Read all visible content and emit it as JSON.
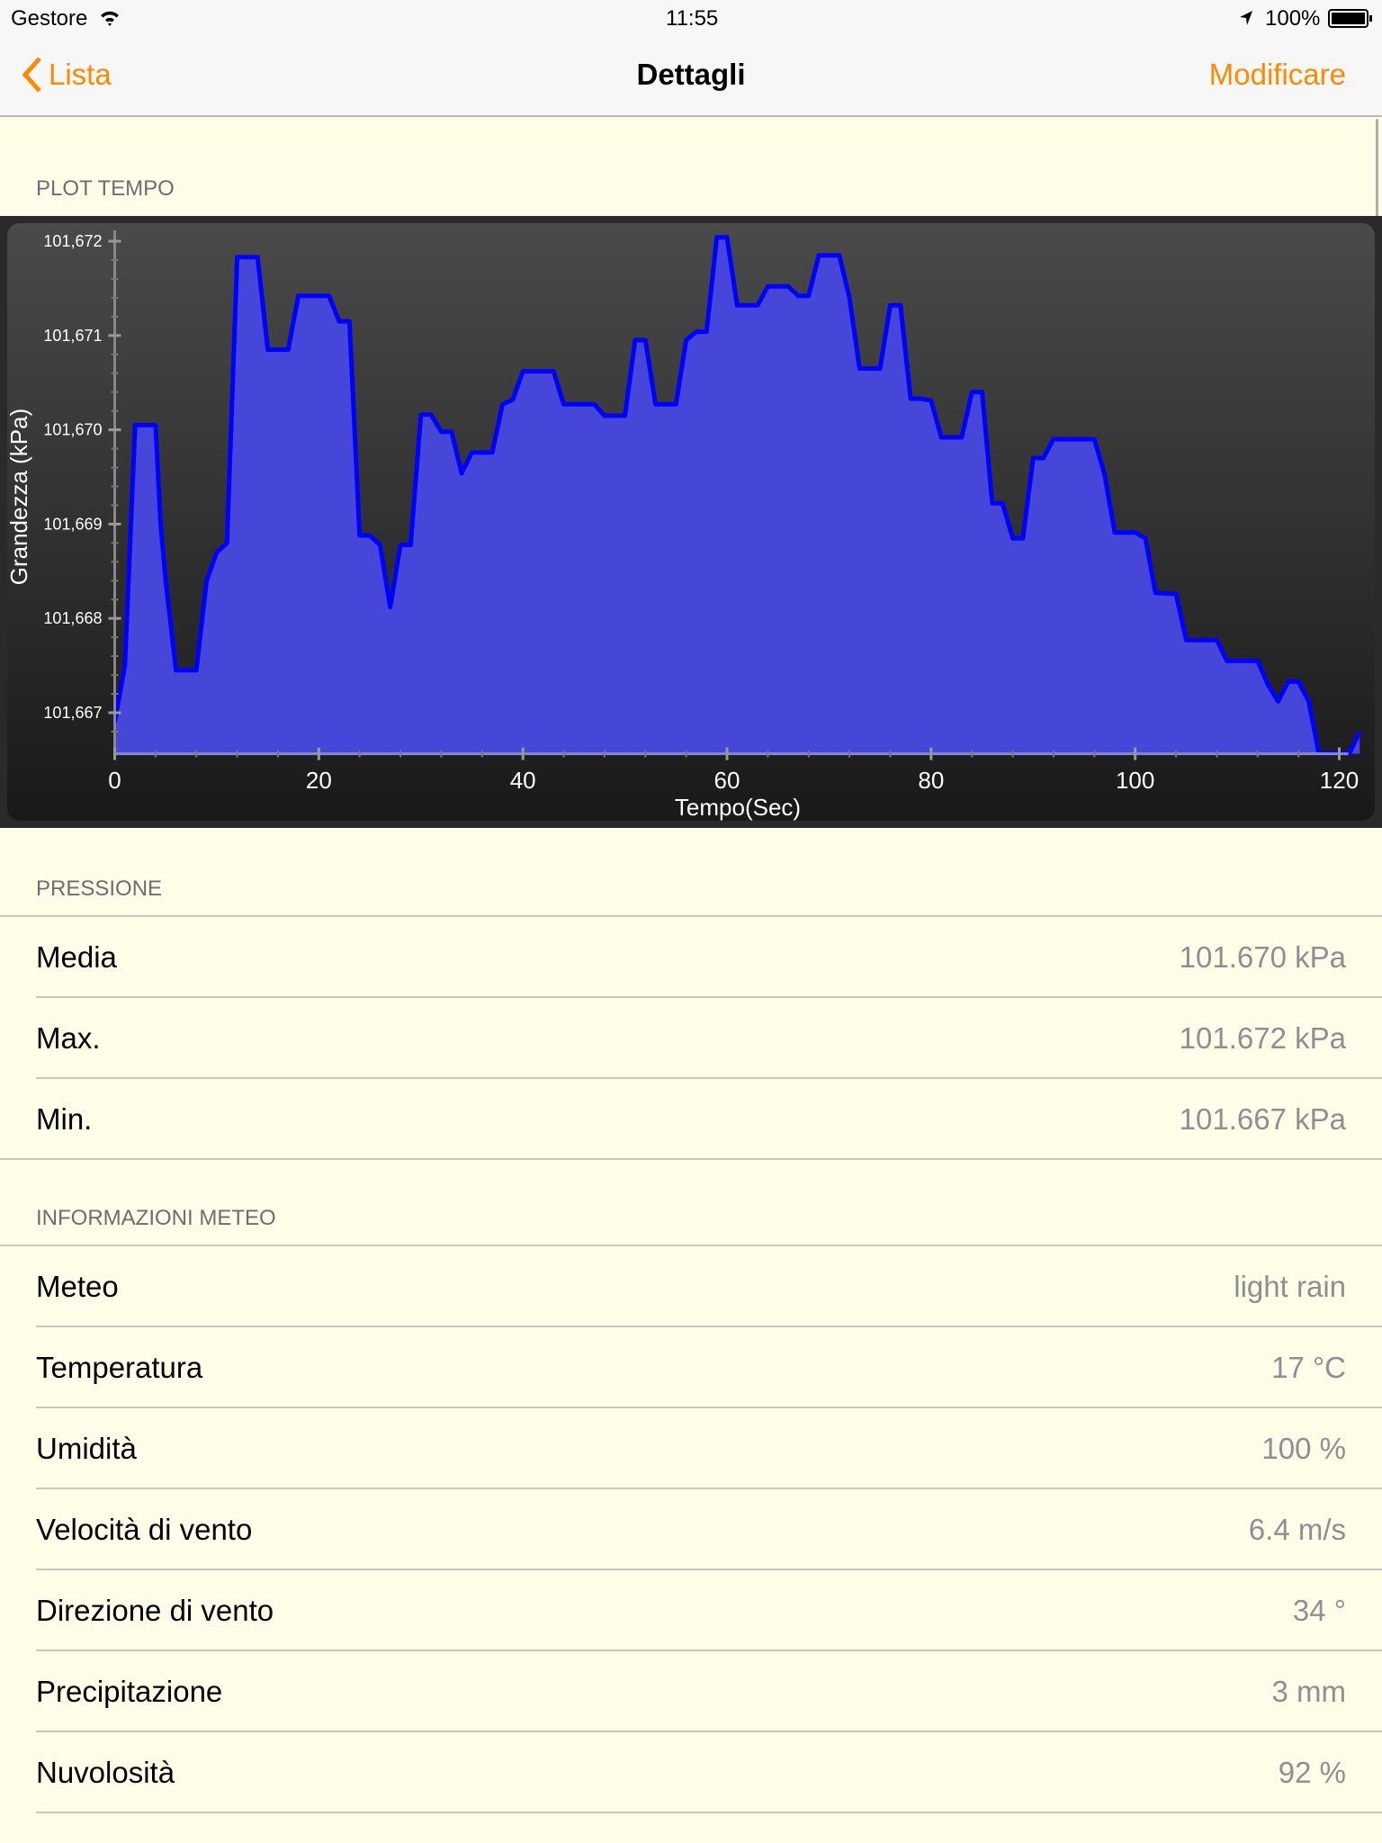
{
  "status_bar": {
    "carrier": "Gestore",
    "time": "11:55",
    "battery": "100%",
    "icons": [
      "wifi-icon",
      "location-arrow-icon",
      "battery-icon"
    ]
  },
  "nav": {
    "back_label": "Lista",
    "title": "Dettagli",
    "edit_label": "Modificare",
    "accent_color": "#ff8a00"
  },
  "plot_section": {
    "header": "PLOT TEMPO"
  },
  "chart_data": {
    "type": "area",
    "xlabel": "Tempo(Sec)",
    "ylabel": "Grandezza (kPa)",
    "xlim": [
      0,
      122
    ],
    "ylim": [
      101.66657,
      101.67206
    ],
    "x_ticks": [
      0,
      20,
      40,
      60,
      80,
      100,
      120
    ],
    "y_ticks": [
      101.667,
      101.668,
      101.669,
      101.67,
      101.671,
      101.672
    ],
    "y_tick_labels": [
      "101,667",
      "101,668",
      "101,669",
      "101,670",
      "101,671",
      "101,672"
    ],
    "line_color": "#0000ff",
    "fill_color": "#4646d8",
    "grid": false,
    "x": [
      0,
      1,
      2,
      4,
      4.5,
      5,
      6,
      8,
      9,
      10,
      11,
      12,
      14,
      15,
      17,
      18,
      21,
      22,
      23,
      24,
      25,
      26,
      27,
      28,
      29,
      30,
      31,
      32,
      33,
      34,
      35,
      37,
      38,
      39,
      40,
      43,
      44,
      47,
      48,
      50,
      51,
      52,
      53,
      55,
      56,
      57,
      58,
      59,
      60,
      61,
      63,
      64,
      66,
      67,
      68,
      69,
      71,
      72,
      73,
      75,
      76,
      77,
      78,
      79,
      80,
      81,
      83,
      84,
      85,
      86,
      87,
      88,
      89,
      90,
      91,
      92,
      96,
      97,
      98,
      100,
      101,
      102,
      104,
      105,
      108,
      109,
      112,
      113,
      114,
      115,
      116,
      117,
      118,
      121,
      122
    ],
    "y": [
      101.6669,
      101.6675,
      101.67005,
      101.67005,
      101.669,
      101.6684,
      101.66745,
      101.66745,
      101.6684,
      101.6687,
      101.6688,
      101.67183,
      101.67183,
      101.67085,
      101.67085,
      101.67142,
      101.67142,
      101.67115,
      101.67115,
      101.66888,
      101.66888,
      101.66878,
      101.66812,
      101.66878,
      101.66878,
      101.67016,
      101.67016,
      101.66998,
      101.66998,
      101.66954,
      101.66976,
      101.66976,
      101.67027,
      101.67032,
      101.67062,
      101.67062,
      101.67027,
      101.67027,
      101.67015,
      101.67015,
      101.67095,
      101.67095,
      101.67027,
      101.67027,
      101.67095,
      101.67104,
      101.67104,
      101.67204,
      101.67204,
      101.67132,
      101.67132,
      101.67152,
      101.67152,
      101.67142,
      101.67142,
      101.67185,
      101.67185,
      101.6714,
      101.67065,
      101.67065,
      101.67132,
      101.67132,
      101.67033,
      101.67033,
      101.67031,
      101.66992,
      101.66992,
      101.6704,
      101.6704,
      101.66922,
      101.66922,
      101.66885,
      101.66885,
      101.6697,
      101.6697,
      101.6699,
      101.6699,
      101.66953,
      101.66891,
      101.66891,
      101.66885,
      101.66827,
      101.66826,
      101.66777,
      101.66777,
      101.66755,
      101.66755,
      101.6673,
      101.66712,
      101.66733,
      101.66733,
      101.66712,
      101.66657,
      101.66657,
      101.6668
    ]
  },
  "pressure_section": {
    "header": "PRESSIONE",
    "rows": [
      {
        "label": "Media",
        "value": "101.670 kPa"
      },
      {
        "label": "Max.",
        "value": "101.672 kPa"
      },
      {
        "label": "Min.",
        "value": "101.667 kPa"
      }
    ]
  },
  "weather_section": {
    "header": "INFORMAZIONI METEO",
    "rows": [
      {
        "label": "Meteo",
        "value": "light rain"
      },
      {
        "label": "Temperatura",
        "value": "17 °C"
      },
      {
        "label": "Umidità",
        "value": "100 %"
      },
      {
        "label": "Velocità di vento",
        "value": "6.4 m/s"
      },
      {
        "label": "Direzione di vento",
        "value": "34 °"
      },
      {
        "label": "Precipitazione",
        "value": "3 mm"
      },
      {
        "label": "Nuvolosità",
        "value": "92 %"
      }
    ]
  }
}
